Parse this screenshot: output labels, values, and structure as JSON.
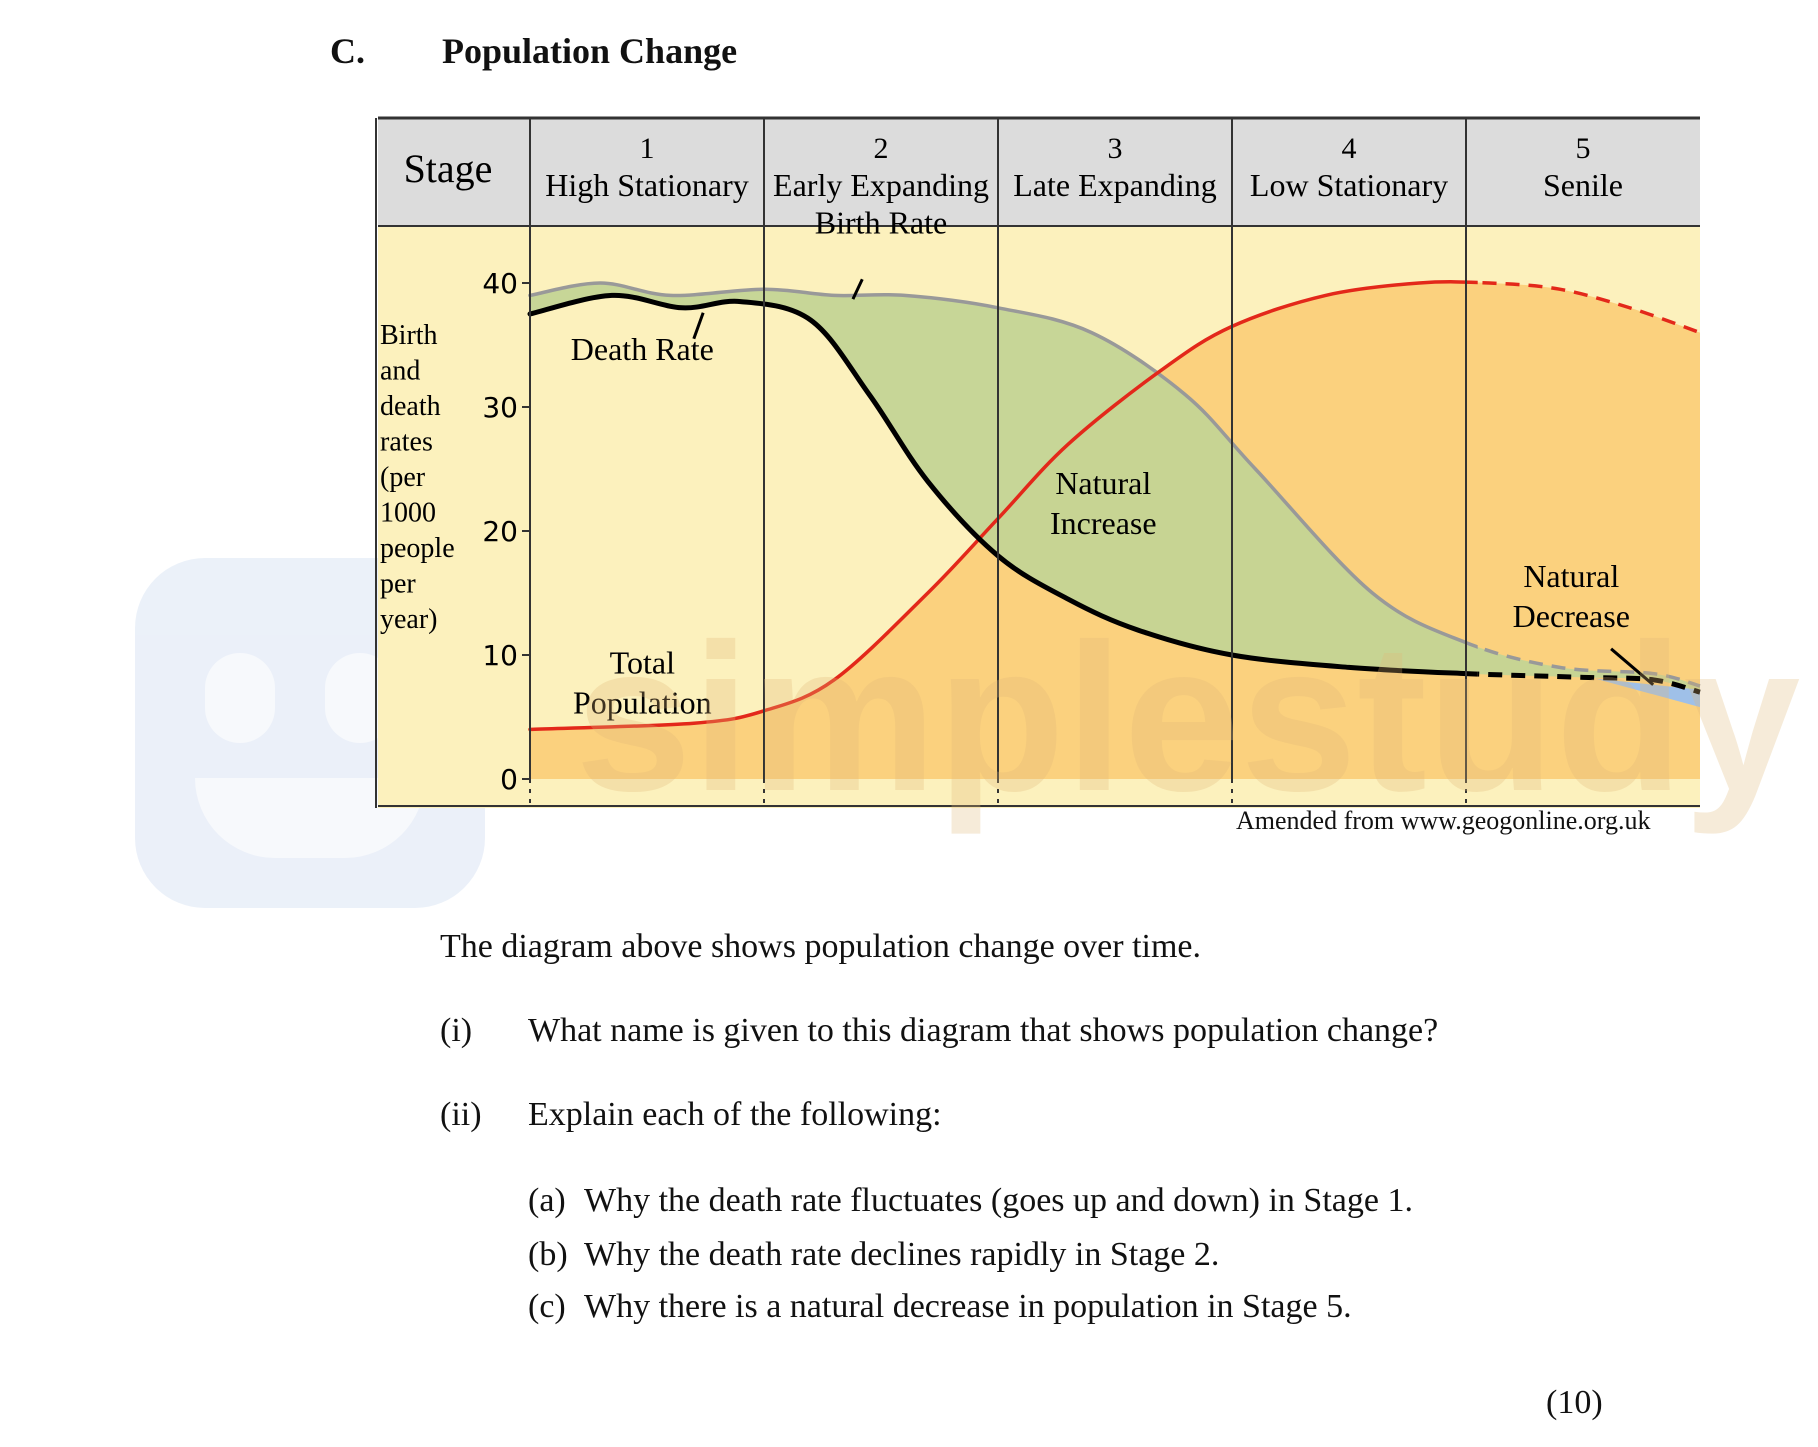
{
  "section": {
    "letter": "C.",
    "title": "Population Change"
  },
  "chart_data": {
    "type": "line",
    "stage_header_label": "Stage",
    "stages": [
      {
        "number": "1",
        "name": "High Stationary"
      },
      {
        "number": "2",
        "name": "Early Expanding"
      },
      {
        "number": "3",
        "name": "Late Expanding"
      },
      {
        "number": "4",
        "name": "Low Stationary"
      },
      {
        "number": "5",
        "name": "Senile"
      }
    ],
    "ylabel_lines": [
      "Birth",
      "and",
      "death",
      "rates",
      "(per",
      "1000",
      "people",
      "per",
      "year)"
    ],
    "yticks": [
      "0",
      "10",
      "20",
      "30",
      "40"
    ],
    "ylim": [
      0,
      40
    ],
    "xlim": [
      0,
      5
    ],
    "series": [
      {
        "name": "Birth Rate",
        "x": [
          0,
          0.3,
          0.6,
          1.0,
          1.3,
          1.6,
          2.0,
          2.4,
          2.8,
          3.1,
          3.6,
          4.0,
          4.4,
          4.8,
          5.0
        ],
        "y": [
          39,
          40,
          39,
          39.5,
          39,
          39,
          38,
          36,
          31,
          25,
          15,
          11,
          9,
          8.5,
          7.5
        ]
      },
      {
        "name": "Death Rate",
        "x": [
          0,
          0.35,
          0.65,
          0.9,
          1.2,
          1.45,
          1.7,
          2.0,
          2.3,
          2.6,
          3.0,
          3.5,
          4.0,
          4.5,
          4.8,
          5.0
        ],
        "y": [
          37.5,
          39,
          38,
          38.5,
          37,
          31,
          24,
          18,
          14.5,
          12,
          10,
          9,
          8.5,
          8.2,
          8,
          7
        ]
      },
      {
        "name": "Total Population",
        "x": [
          0,
          0.7,
          1.0,
          1.3,
          1.7,
          2.0,
          2.3,
          2.7,
          3.0,
          3.4,
          3.8,
          4.1,
          4.4,
          4.7,
          5.0
        ],
        "y": [
          4,
          4.5,
          5.5,
          8,
          15,
          21,
          27,
          33,
          36.5,
          39,
          40,
          40,
          39.5,
          38,
          36
        ]
      }
    ],
    "colors": {
      "birth_rate": "#999999",
      "death_rate": "#000000",
      "total_population": "#e3281a",
      "natural_increase": "#c4d495",
      "population_area": "#fbd17e",
      "natural_decrease": "#9fc0e8",
      "background": "#fcf1bd",
      "header": "#dcdcdc"
    },
    "annotations": [
      {
        "text": "Birth Rate",
        "x": 1.5,
        "y": 44
      },
      {
        "text": "Death Rate",
        "x": 0.48,
        "y": 33.8
      },
      {
        "text": [
          "Natural",
          "Increase"
        ],
        "x": 2.45,
        "y": 23
      },
      {
        "text": [
          "Total",
          "Population"
        ],
        "x": 0.48,
        "y": 8.5
      },
      {
        "text": [
          "Natural",
          "Decrease"
        ],
        "x": 4.45,
        "y": 15.5
      }
    ],
    "source": "Amended from www.geogonline.org.uk"
  },
  "intro": "The diagram above shows population change over time.",
  "questions": [
    {
      "num": "(i)",
      "text": "What name is given to this diagram that shows population change?"
    },
    {
      "num": "(ii)",
      "text": "Explain each of the following:"
    }
  ],
  "subquestions": [
    {
      "letter": "(a)",
      "text": "Why the death rate fluctuates (goes up and down) in Stage 1."
    },
    {
      "letter": "(b)",
      "text": "Why the death rate declines rapidly in Stage 2."
    },
    {
      "letter": "(c)",
      "text": "Why there is a natural decrease in population in Stage 5."
    }
  ],
  "marks": "(10)",
  "watermark": "simplestudy"
}
